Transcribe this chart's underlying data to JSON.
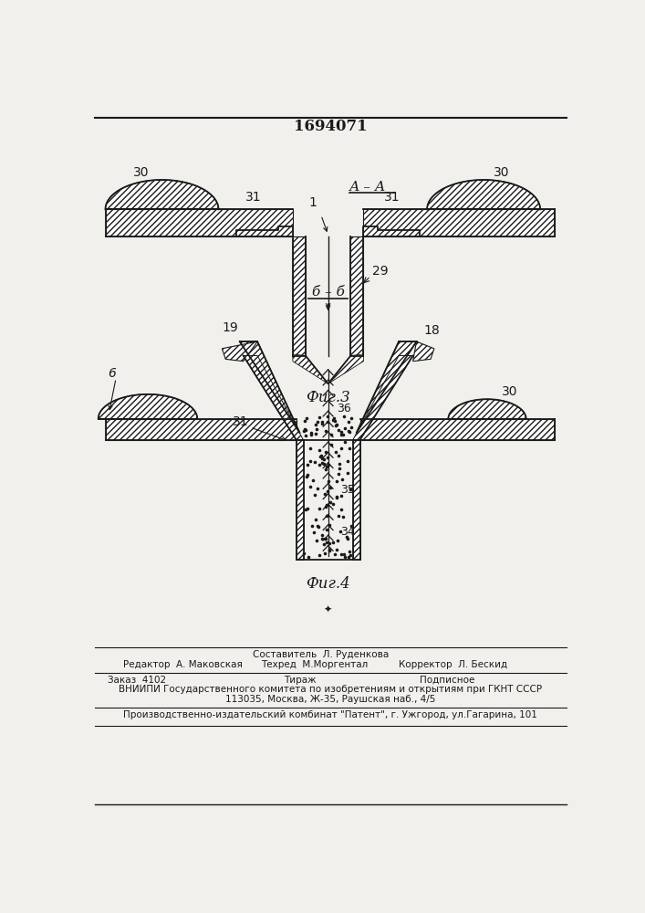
{
  "title": "1694071",
  "fig3_label": "Фиг.3",
  "fig4_label": "Фиг.4",
  "section_aa": "А – А",
  "section_bb": "б – б",
  "bg_color": "#f2f0ed",
  "line_color": "#1a1a1a",
  "footer_composer": "Составитель  Л. Руденкова",
  "footer_editor": "Редактор  А. Маковская",
  "footer_tech": "Техред  М.Моргентал",
  "footer_corrector": "Корректор  Л. Бескид",
  "footer_order": "Заказ  4102",
  "footer_print": "Тираж",
  "footer_signed": "Подписное",
  "footer_vniip1": "ВНИИПИ Государственного комитета по изобретениям и открытиям при ГКНТ СССР",
  "footer_vniip2": "113035, Москва, Ж-35, Раушская наб., 4/5",
  "footer_patent": "Производственно-издательский комбинат \"Патент\", г. Ужгород, ул.Гагарина, 101"
}
